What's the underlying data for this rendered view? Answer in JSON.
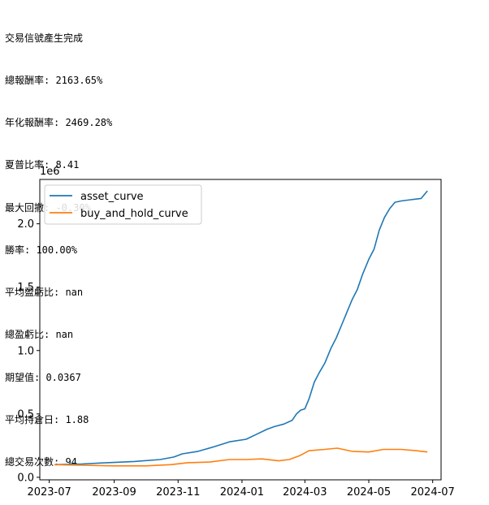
{
  "console": {
    "lines": [
      "交易信號產生完成",
      "總報酬率: 2163.65%",
      "年化報酬率: 2469.28%",
      "夏普比率: 8.41",
      "最大回撤: -0.30%",
      "勝率: 100.00%",
      "平均盈虧比: nan",
      "總盈虧比: nan",
      "期望值: 0.0367",
      "平均持倉日: 1.88",
      "總交易次數: 94"
    ]
  },
  "chart_data": {
    "type": "line",
    "title": "",
    "xlabel": "",
    "ylabel": "",
    "y_offset_label": "1e6",
    "x_ticks": [
      "2023-07",
      "2023-09",
      "2023-11",
      "2024-01",
      "2024-03",
      "2024-05",
      "2024-07"
    ],
    "y_ticks": [
      "0.0",
      "0.5",
      "1.0",
      "1.5",
      "2.0"
    ],
    "y_tick_values": [
      0.0,
      0.5,
      1.0,
      1.5,
      2.0
    ],
    "xlim": [
      "2023-06-22",
      "2024-07-09"
    ],
    "ylim": [
      -0.02,
      2.35
    ],
    "legend_position": "upper-left",
    "series": [
      {
        "name": "asset_curve",
        "color": "#1f77b4",
        "x": [
          "2023-07-06",
          "2023-08-01",
          "2023-08-25",
          "2023-09-20",
          "2023-10-15",
          "2023-10-28",
          "2023-11-05",
          "2023-11-20",
          "2023-12-05",
          "2023-12-20",
          "2024-01-05",
          "2024-01-15",
          "2024-01-25",
          "2024-02-01",
          "2024-02-10",
          "2024-02-18",
          "2024-02-22",
          "2024-02-26",
          "2024-03-01",
          "2024-03-05",
          "2024-03-10",
          "2024-03-15",
          "2024-03-20",
          "2024-03-26",
          "2024-03-31",
          "2024-04-05",
          "2024-04-10",
          "2024-04-15",
          "2024-04-20",
          "2024-04-25",
          "2024-05-01",
          "2024-05-06",
          "2024-05-11",
          "2024-05-16",
          "2024-05-21",
          "2024-05-26",
          "2024-06-01",
          "2024-06-10",
          "2024-06-20",
          "2024-06-26"
        ],
        "values": [
          0.1,
          0.105,
          0.115,
          0.125,
          0.14,
          0.16,
          0.185,
          0.205,
          0.24,
          0.28,
          0.3,
          0.34,
          0.38,
          0.4,
          0.42,
          0.45,
          0.5,
          0.53,
          0.54,
          0.62,
          0.75,
          0.83,
          0.9,
          1.02,
          1.1,
          1.2,
          1.3,
          1.4,
          1.48,
          1.6,
          1.72,
          1.8,
          1.95,
          2.05,
          2.12,
          2.17,
          2.18,
          2.19,
          2.2,
          2.26
        ]
      },
      {
        "name": "buy_and_hold_curve",
        "color": "#ff7f0e",
        "x": [
          "2023-07-06",
          "2023-08-01",
          "2023-09-01",
          "2023-10-01",
          "2023-10-25",
          "2023-11-10",
          "2023-12-01",
          "2023-12-20",
          "2024-01-05",
          "2024-01-20",
          "2024-02-05",
          "2024-02-15",
          "2024-02-25",
          "2024-03-05",
          "2024-03-20",
          "2024-04-01",
          "2024-04-15",
          "2024-05-01",
          "2024-05-15",
          "2024-06-01",
          "2024-06-15",
          "2024-06-26"
        ],
        "values": [
          0.1,
          0.095,
          0.09,
          0.09,
          0.1,
          0.115,
          0.12,
          0.14,
          0.14,
          0.145,
          0.13,
          0.14,
          0.17,
          0.21,
          0.22,
          0.23,
          0.205,
          0.2,
          0.22,
          0.22,
          0.21,
          0.2
        ]
      }
    ]
  }
}
